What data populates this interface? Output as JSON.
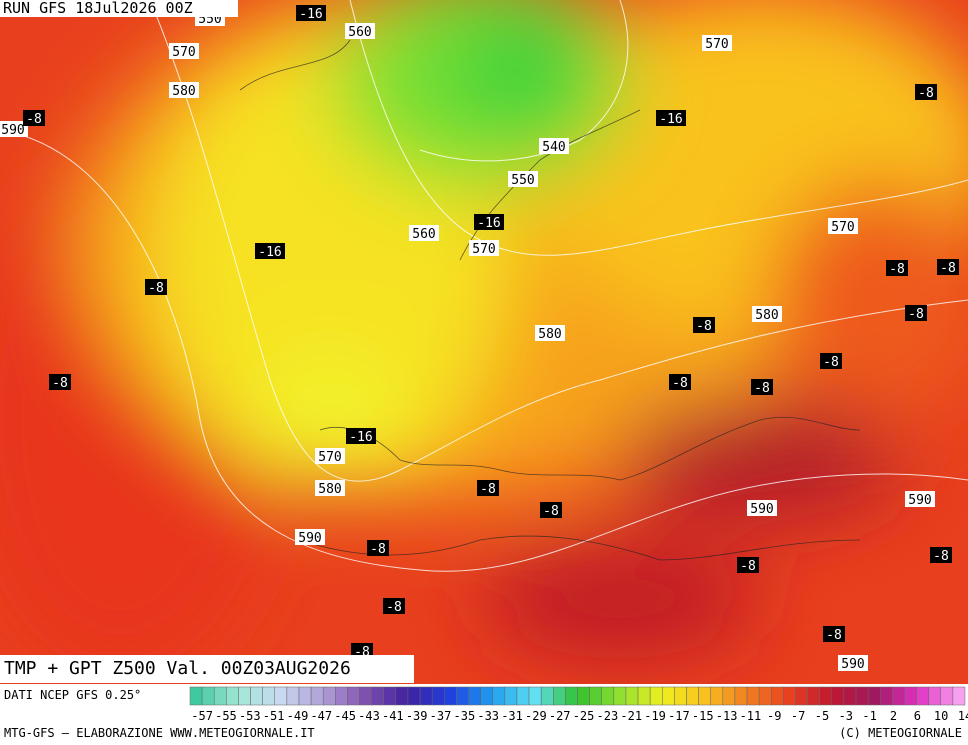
{
  "header": {
    "run": "RUN GFS 18Jul2026 00Z"
  },
  "title": "TMP + GPT Z500 Val. 00Z03AUG2026",
  "source": "DATI NCEP GFS 0.25°",
  "colorbar": {
    "labels": [
      -57,
      -55,
      -53,
      -51,
      -49,
      -47,
      -45,
      -43,
      -41,
      -39,
      -37,
      -35,
      -33,
      -31,
      -29,
      -27,
      -25,
      -23,
      -21,
      -19,
      -17,
      -15,
      -13,
      -11,
      -9,
      -7,
      -5,
      -3,
      -1,
      2,
      6,
      10,
      14
    ]
  },
  "footer": {
    "left": "MTG-GFS — ELABORAZIONE WWW.METEOGIORNALE.IT",
    "right": "(C) METEOGIORNALE"
  },
  "map_labels": [
    "550",
    "-16",
    "560",
    "570",
    "570",
    "580",
    "-8",
    "590",
    "-8",
    "-16",
    "540",
    "550",
    "-16",
    "560",
    "570",
    "570",
    "-16",
    "-8",
    "-8",
    "-8",
    "-8",
    "580",
    "-8",
    "580",
    "-8",
    "-8",
    "-8",
    "-8",
    "-16",
    "570",
    "580",
    "-8",
    "590",
    "-8",
    "590",
    "590",
    "-8",
    "-8",
    "-8",
    "-8",
    "-8",
    "-8",
    "590"
  ]
}
